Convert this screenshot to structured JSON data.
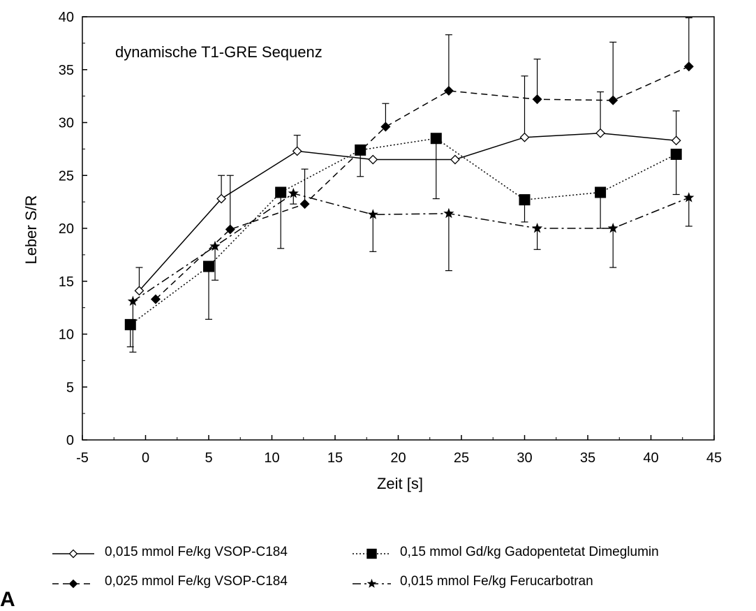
{
  "chart_data": {
    "type": "line",
    "title": "dynamische T1-GRE Sequenz",
    "xlabel": "Zeit [s]",
    "ylabel": "Leber S/R",
    "xlim": [
      -5,
      45
    ],
    "ylim": [
      0,
      40
    ],
    "x_ticks": [
      "-5",
      "0",
      "5",
      "10",
      "15",
      "20",
      "25",
      "30",
      "35",
      "40",
      "45"
    ],
    "y_ticks": [
      "0",
      "5",
      "10",
      "15",
      "20",
      "25",
      "30",
      "35",
      "40"
    ],
    "grid": false,
    "legend_position": "bottom",
    "series": [
      {
        "name": "0,015 mmol Fe/kg VSOP-C184",
        "marker": "open-diamond",
        "line": "solid",
        "x": [
          -0.5,
          6,
          12,
          18,
          24.5,
          30,
          36,
          42
        ],
        "y": [
          14.1,
          22.8,
          27.3,
          26.5,
          26.5,
          28.6,
          29.0,
          28.3
        ],
        "error_up": [
          2.2,
          2.2,
          1.5,
          0,
          0,
          5.8,
          3.9,
          2.8
        ]
      },
      {
        "name": "0,15 mmol Gd/kg Gadopentetat Dimeglumin",
        "marker": "filled-square",
        "line": "dotted",
        "x": [
          -1.2,
          5,
          10.7,
          17,
          23,
          30,
          36,
          42
        ],
        "y": [
          10.9,
          16.4,
          23.4,
          27.4,
          28.5,
          22.7,
          23.4,
          27.0
        ],
        "error_up": [
          0,
          0,
          0,
          0,
          0,
          0,
          0,
          0
        ],
        "error_down": [
          2.1,
          5.0,
          5.3,
          2.5,
          5.7,
          2.1,
          3.4,
          3.8
        ]
      },
      {
        "name": "0,025 mmol Fe/kg VSOP-C184",
        "marker": "filled-diamond",
        "line": "dashed",
        "x": [
          0.8,
          6.7,
          12.6,
          19,
          24,
          31,
          37,
          43
        ],
        "y": [
          13.3,
          19.9,
          22.3,
          29.6,
          33.0,
          32.2,
          32.1,
          35.3
        ],
        "error_up": [
          0,
          5.1,
          3.3,
          2.2,
          5.3,
          3.8,
          5.5,
          4.6
        ]
      },
      {
        "name": "0,015 mmol Fe/kg Ferucarbotran",
        "marker": "star",
        "line": "dash-dot",
        "x": [
          -1,
          5.5,
          11.7,
          18,
          24,
          31,
          37,
          43
        ],
        "y": [
          13.1,
          18.3,
          23.3,
          21.3,
          21.4,
          20.0,
          20.0,
          22.9
        ],
        "error_up": [
          0,
          0,
          0,
          0,
          0,
          0,
          0,
          0
        ],
        "error_down": [
          4.8,
          3.2,
          1.0,
          3.5,
          5.4,
          2.0,
          3.7,
          2.7
        ]
      }
    ]
  },
  "panel_letter": "A"
}
